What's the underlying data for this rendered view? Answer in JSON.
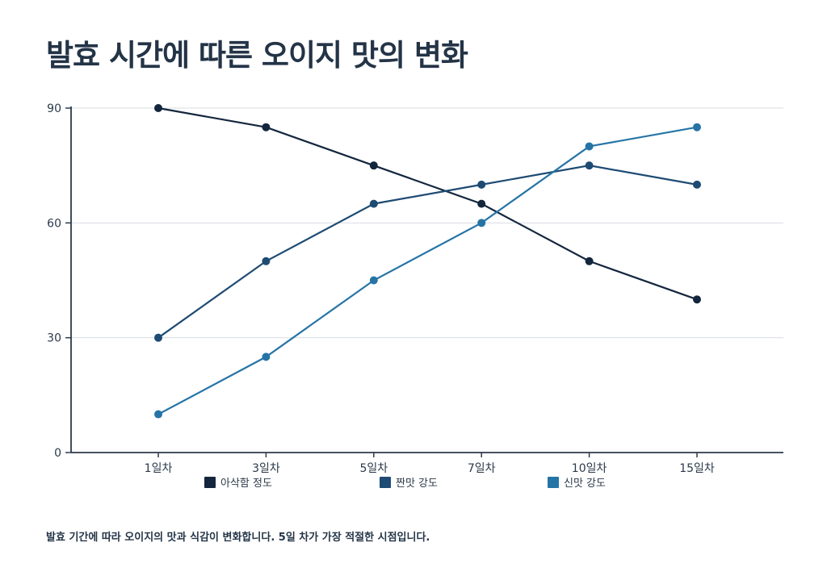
{
  "page": {
    "title": "발효 시간에 따른 오이지 맛의 변화",
    "footnote": "발효 기간에 따라 오이지의 맛과 식감이 변화합니다. 5일 차가 가장 적절한 시점입니다."
  },
  "chart_data": {
    "type": "line",
    "categories": [
      "1일차",
      "3일차",
      "5일차",
      "7일차",
      "10일차",
      "15일차"
    ],
    "series": [
      {
        "name": "아삭함 정도",
        "color": "#13263d",
        "values": [
          90,
          85,
          75,
          65,
          50,
          40
        ]
      },
      {
        "name": "짠맛 강도",
        "color": "#1e4b73",
        "values": [
          30,
          50,
          65,
          70,
          75,
          70
        ]
      },
      {
        "name": "신맛 강도",
        "color": "#2674a6",
        "values": [
          10,
          25,
          45,
          60,
          80,
          85
        ]
      }
    ],
    "ylim": [
      0,
      90
    ],
    "yticks": [
      0,
      30,
      60,
      90
    ],
    "grid": true,
    "legend": "bottom"
  }
}
